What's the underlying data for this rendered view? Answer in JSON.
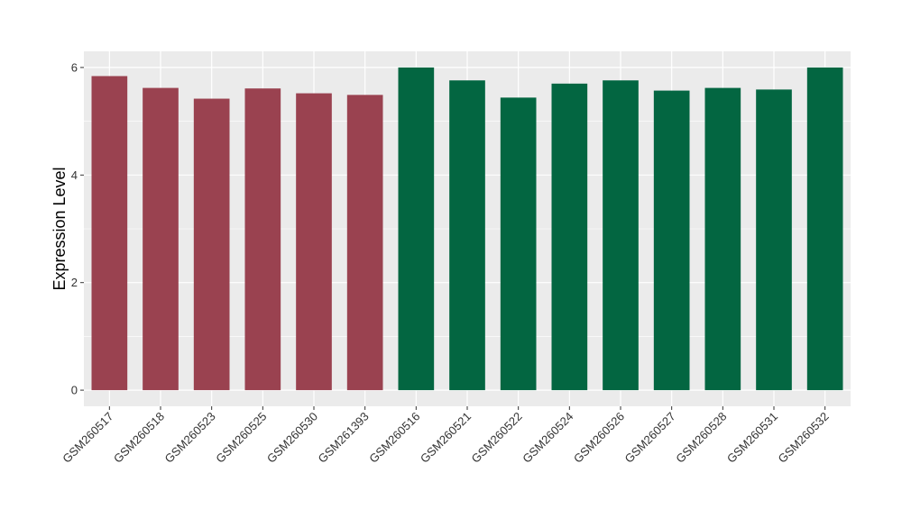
{
  "chart_data": {
    "type": "bar",
    "title": "",
    "xlabel": "",
    "ylabel": "Expression Level",
    "ylim": [
      -0.3,
      6.3
    ],
    "yticks": [
      0,
      2,
      4,
      6
    ],
    "grid": true,
    "legend": "none",
    "categories": [
      "GSM260517",
      "GSM260518",
      "GSM260523",
      "GSM260525",
      "GSM260530",
      "GSM261393",
      "GSM260516",
      "GSM260521",
      "GSM260522",
      "GSM260524",
      "GSM260526",
      "GSM260527",
      "GSM260528",
      "GSM260531",
      "GSM260532"
    ],
    "values": [
      5.84,
      5.62,
      5.42,
      5.61,
      5.52,
      5.49,
      6.0,
      5.76,
      5.44,
      5.7,
      5.76,
      5.57,
      5.62,
      5.59,
      6.0
    ],
    "group_index": [
      0,
      0,
      0,
      0,
      0,
      0,
      1,
      1,
      1,
      1,
      1,
      1,
      1,
      1,
      1
    ],
    "group_colors": [
      "#9a4250",
      "#036641"
    ],
    "panel_background": "#ebebeb",
    "grid_color": "#ffffff"
  }
}
